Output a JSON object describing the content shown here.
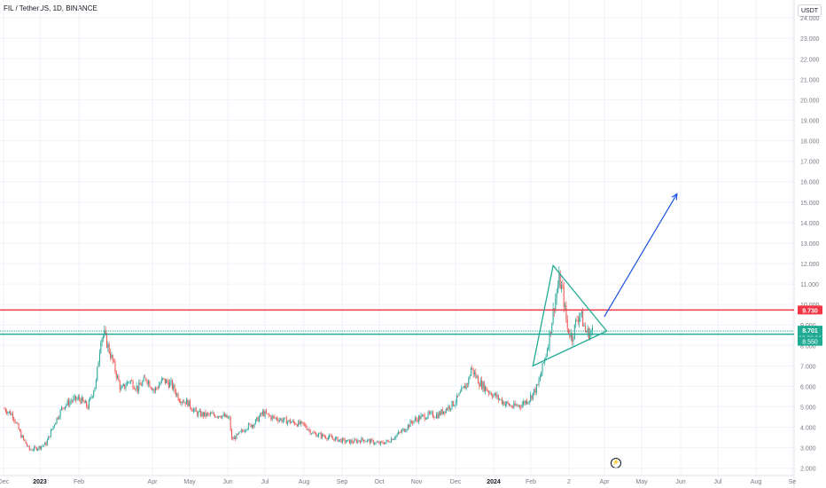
{
  "header": {
    "symbol_title": "FIL / TetherUS, 1D, BINANCE"
  },
  "price_axis": {
    "unit": "USDT"
  },
  "colors": {
    "up": "#26a69a",
    "down": "#ef5350",
    "resistance": "#f23645",
    "support": "#22ab94",
    "projection": "#1e53e5",
    "grid": "#f0f3fa",
    "axis_text": "#787b86"
  },
  "icons": {
    "replay": "lightning-icon"
  },
  "chart_data": {
    "type": "candlestick",
    "title": "FIL / TetherUS, 1D, BINANCE",
    "ylim": [
      2.0,
      24.5
    ],
    "y_ticks": [
      "2.000",
      "3.000",
      "4.000",
      "5.000",
      "6.000",
      "7.000",
      "8.000",
      "9.000",
      "10.000",
      "11.000",
      "12.000",
      "13.000",
      "14.000",
      "15.000",
      "16.000",
      "17.000",
      "18.000",
      "19.000",
      "20.000",
      "21.000",
      "22.000",
      "23.000",
      "24.000"
    ],
    "x_ticks": [
      "Dec",
      "2023",
      "Feb",
      "Apr",
      "May",
      "Jun",
      "Jul",
      "Aug",
      "Sep",
      "Oct",
      "Nov",
      "Dec",
      "2024",
      "Feb",
      "2",
      "Apr",
      "May",
      "Jun",
      "Jul",
      "Aug",
      "Se"
    ],
    "price_path": [
      [
        "2022-12-01",
        4.9
      ],
      [
        "2022-12-08",
        4.6
      ],
      [
        "2022-12-15",
        3.6
      ],
      [
        "2022-12-22",
        2.9
      ],
      [
        "2022-12-29",
        3.0
      ],
      [
        "2023-01-05",
        3.2
      ],
      [
        "2023-01-12",
        4.2
      ],
      [
        "2023-01-19",
        5.0
      ],
      [
        "2023-01-26",
        5.3
      ],
      [
        "2023-02-02",
        5.4
      ],
      [
        "2023-02-09",
        5.0
      ],
      [
        "2023-02-16",
        6.2
      ],
      [
        "2023-02-20",
        8.4
      ],
      [
        "2023-02-23",
        8.5
      ],
      [
        "2023-03-02",
        7.2
      ],
      [
        "2023-03-09",
        5.8
      ],
      [
        "2023-03-16",
        6.3
      ],
      [
        "2023-03-23",
        5.9
      ],
      [
        "2023-03-30",
        6.4
      ],
      [
        "2023-04-06",
        5.8
      ],
      [
        "2023-04-13",
        6.3
      ],
      [
        "2023-04-20",
        6.1
      ],
      [
        "2023-04-27",
        5.4
      ],
      [
        "2023-05-04",
        5.2
      ],
      [
        "2023-05-11",
        4.7
      ],
      [
        "2023-05-18",
        4.6
      ],
      [
        "2023-05-25",
        4.6
      ],
      [
        "2023-06-01",
        4.6
      ],
      [
        "2023-06-08",
        4.4
      ],
      [
        "2023-06-10",
        3.4
      ],
      [
        "2023-06-15",
        3.6
      ],
      [
        "2023-06-22",
        4.0
      ],
      [
        "2023-06-29",
        4.2
      ],
      [
        "2023-07-06",
        4.7
      ],
      [
        "2023-07-13",
        4.5
      ],
      [
        "2023-07-20",
        4.4
      ],
      [
        "2023-07-27",
        4.3
      ],
      [
        "2023-08-03",
        4.2
      ],
      [
        "2023-08-10",
        4.1
      ],
      [
        "2023-08-17",
        3.7
      ],
      [
        "2023-08-24",
        3.6
      ],
      [
        "2023-08-31",
        3.5
      ],
      [
        "2023-09-07",
        3.4
      ],
      [
        "2023-09-14",
        3.3
      ],
      [
        "2023-09-21",
        3.3
      ],
      [
        "2023-09-28",
        3.4
      ],
      [
        "2023-10-05",
        3.3
      ],
      [
        "2023-10-12",
        3.2
      ],
      [
        "2023-10-19",
        3.3
      ],
      [
        "2023-10-26",
        3.6
      ],
      [
        "2023-11-02",
        3.9
      ],
      [
        "2023-11-09",
        4.3
      ],
      [
        "2023-11-16",
        4.5
      ],
      [
        "2023-11-23",
        4.6
      ],
      [
        "2023-11-30",
        4.6
      ],
      [
        "2023-12-07",
        4.9
      ],
      [
        "2023-12-14",
        5.2
      ],
      [
        "2023-12-21",
        5.8
      ],
      [
        "2023-12-26",
        6.3
      ],
      [
        "2023-12-28",
        6.9
      ],
      [
        "2024-01-04",
        6.2
      ],
      [
        "2024-01-11",
        5.8
      ],
      [
        "2024-01-18",
        5.5
      ],
      [
        "2024-01-25",
        5.2
      ],
      [
        "2024-02-01",
        5.0
      ],
      [
        "2024-02-08",
        5.1
      ],
      [
        "2024-02-15",
        5.4
      ],
      [
        "2024-02-22",
        6.0
      ],
      [
        "2024-02-29",
        7.6
      ],
      [
        "2024-03-03",
        8.5
      ],
      [
        "2024-03-07",
        10.0
      ],
      [
        "2024-03-11",
        11.2
      ],
      [
        "2024-03-14",
        10.6
      ],
      [
        "2024-03-18",
        8.8
      ],
      [
        "2024-03-22",
        8.4
      ],
      [
        "2024-03-26",
        9.3
      ],
      [
        "2024-03-29",
        9.6
      ],
      [
        "2024-04-02",
        8.7
      ],
      [
        "2024-04-05",
        8.6
      ],
      [
        "2024-04-08",
        8.7
      ]
    ],
    "annotations": [
      {
        "type": "horizontal-line",
        "label": "9.730",
        "value": 9.73,
        "color": "#f23645"
      },
      {
        "type": "horizontal-line",
        "label": "8.701",
        "value": 8.701,
        "color": "#22ab94"
      },
      {
        "type": "horizontal-line",
        "label": "8.550",
        "value": 8.55,
        "color": "#22ab94"
      },
      {
        "type": "triangle",
        "points": [
          [
            "2024-03-06",
            11.9
          ],
          [
            "2024-04-20",
            8.7
          ],
          [
            "2024-02-18",
            7.0
          ]
        ]
      },
      {
        "type": "arrow",
        "points": [
          [
            "2024-04-18",
            9.4
          ],
          [
            "2024-04-23",
            9.9
          ],
          [
            "2024-06-18",
            15.4
          ]
        ]
      }
    ],
    "last_price": {
      "value": "8.701",
      "countdown": "16:22:34"
    }
  }
}
